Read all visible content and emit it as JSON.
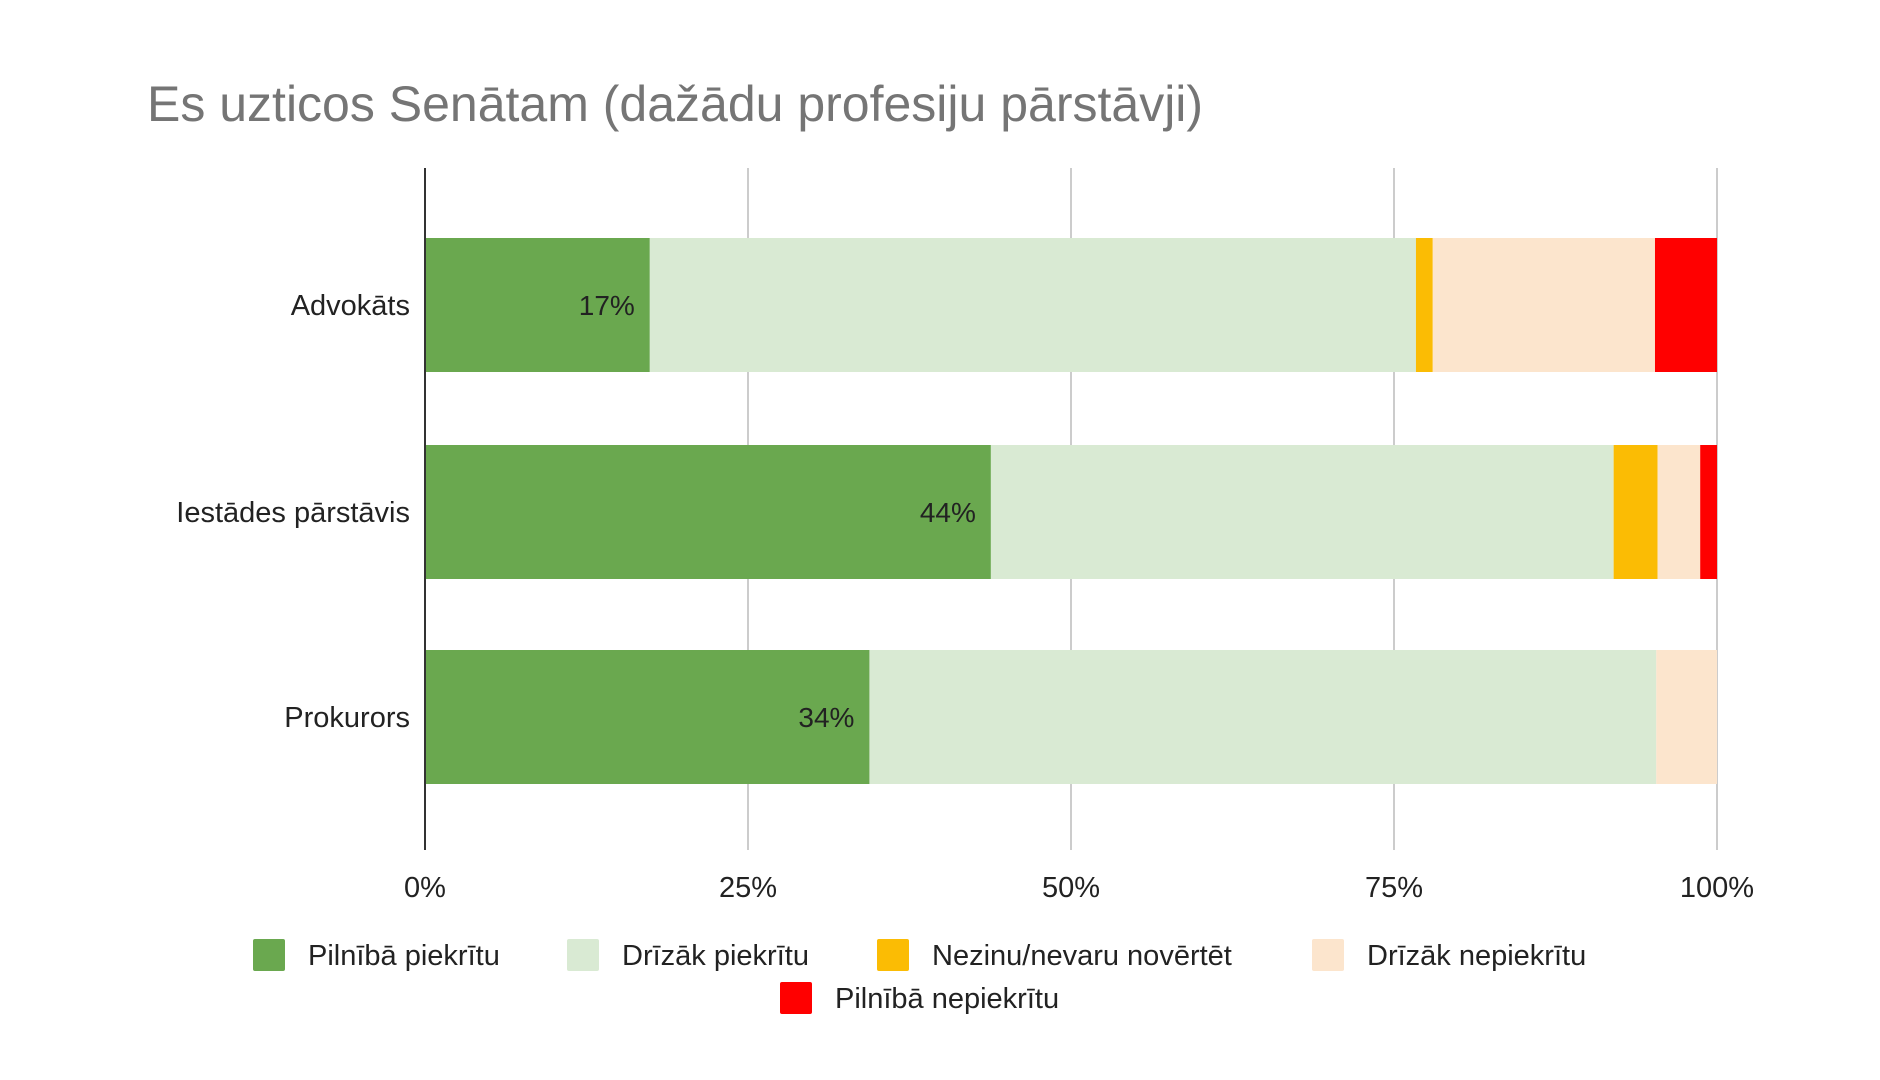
{
  "chart_data": {
    "type": "bar",
    "orientation": "horizontal",
    "stacked": "percent",
    "title": "Es uzticos Senātam (dažādu profesiju pārstāvji)",
    "categories": [
      "Advokāts",
      "Iestādes pārstāvis",
      "Prokurors"
    ],
    "series": [
      {
        "name": "Pilnībā piekrītu",
        "color": "#6aa84f",
        "values": [
          17.4,
          43.8,
          34.4
        ]
      },
      {
        "name": "Drīzāk piekrītu",
        "color": "#d9ead3",
        "values": [
          59.3,
          48.2,
          60.9
        ]
      },
      {
        "name": "Nezinu/nevaru novērtēt",
        "color": "#fbbc04",
        "values": [
          1.3,
          3.4,
          0
        ]
      },
      {
        "name": "Drīzāk nepiekrītu",
        "color": "#fce5cd",
        "values": [
          17.2,
          3.3,
          4.7
        ]
      },
      {
        "name": "Pilnībā nepiekrītu",
        "color": "#ff0000",
        "values": [
          4.8,
          1.3,
          0
        ]
      }
    ],
    "data_labels": [
      "17%",
      "44%",
      "34%"
    ],
    "xlim": [
      0,
      100
    ],
    "xticks": [
      "0%",
      "25%",
      "50%",
      "75%",
      "100%"
    ],
    "grid": true,
    "legend_position": "bottom"
  }
}
